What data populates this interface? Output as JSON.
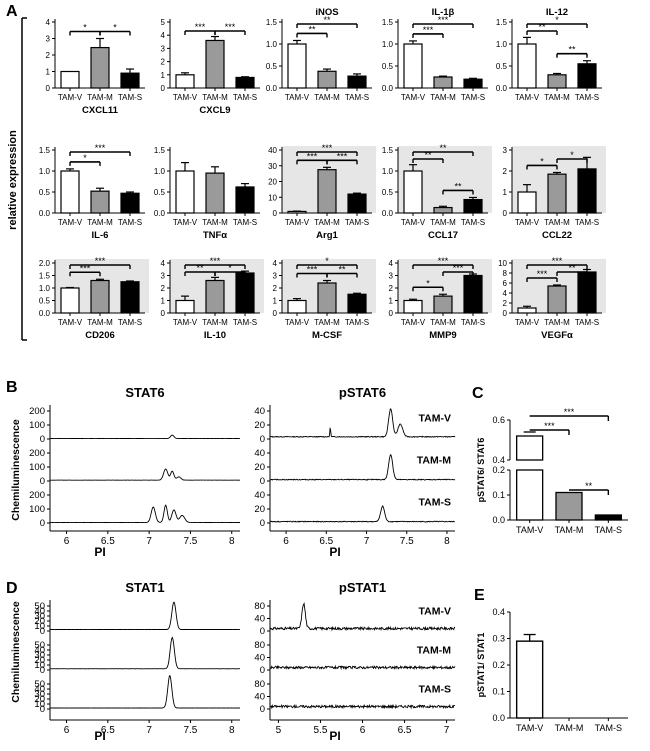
{
  "panels": {
    "A": "A",
    "B": "B",
    "C": "C",
    "D": "D",
    "E": "E"
  },
  "axis_labels": {
    "relative_expression": "relative expression",
    "chemiluminescence": "Chemiluminescence",
    "pi": "PI",
    "pstat6_ratio": "pSTAT6/ STAT6",
    "pstat1_ratio": "pSTAT1/ STAT1"
  },
  "groups": [
    "TAM-V",
    "TAM-M",
    "TAM-S"
  ],
  "chart_data": [
    {
      "type": "bar",
      "id": "CXCL11",
      "title": "CXCL11",
      "categories": [
        "TAM-V",
        "TAM-M",
        "TAM-S"
      ],
      "values": [
        1.0,
        2.45,
        0.9
      ],
      "errors": [
        0.0,
        0.55,
        0.25
      ],
      "ylim": [
        0,
        4
      ],
      "yticks": [
        0,
        1,
        2,
        3,
        4
      ],
      "title_pos": "bottom",
      "shaded": false,
      "sig": [
        {
          "a": 0,
          "b": 1,
          "label": "*"
        },
        {
          "a": 1,
          "b": 2,
          "label": "*"
        }
      ]
    },
    {
      "type": "bar",
      "id": "CXCL9",
      "title": "CXCL9",
      "categories": [
        "TAM-V",
        "TAM-M",
        "TAM-S"
      ],
      "values": [
        1.0,
        3.6,
        0.8
      ],
      "errors": [
        0.15,
        0.3,
        0.05
      ],
      "ylim": [
        0,
        5
      ],
      "yticks": [
        0,
        1,
        2,
        3,
        4,
        5
      ],
      "title_pos": "bottom",
      "shaded": false,
      "sig": [
        {
          "a": 0,
          "b": 1,
          "label": "***"
        },
        {
          "a": 1,
          "b": 2,
          "label": "***"
        }
      ]
    },
    {
      "type": "bar",
      "id": "iNOS",
      "title": "iNOS",
      "categories": [
        "TAM-V",
        "TAM-M",
        "TAM-S"
      ],
      "values": [
        1.0,
        0.38,
        0.27
      ],
      "errors": [
        0.08,
        0.05,
        0.05
      ],
      "ylim": [
        0,
        1.5
      ],
      "yticks": [
        0,
        0.5,
        1.0,
        1.5
      ],
      "title_pos": "top",
      "shaded": false,
      "sig": [
        {
          "a": 0,
          "b": 1,
          "label": "**"
        },
        {
          "a": 0,
          "b": 2,
          "label": "**"
        }
      ]
    },
    {
      "type": "bar",
      "id": "IL-1b",
      "title": "IL-1β",
      "categories": [
        "TAM-V",
        "TAM-M",
        "TAM-S"
      ],
      "values": [
        1.0,
        0.25,
        0.2
      ],
      "errors": [
        0.07,
        0.02,
        0.02
      ],
      "ylim": [
        0,
        1.5
      ],
      "yticks": [
        0,
        0.5,
        1.0,
        1.5
      ],
      "title_pos": "top",
      "shaded": false,
      "sig": [
        {
          "a": 0,
          "b": 1,
          "label": "***"
        },
        {
          "a": 0,
          "b": 2,
          "label": "***"
        }
      ]
    },
    {
      "type": "bar",
      "id": "IL-12",
      "title": "IL-12",
      "categories": [
        "TAM-V",
        "TAM-M",
        "TAM-S"
      ],
      "values": [
        1.0,
        0.3,
        0.55
      ],
      "errors": [
        0.15,
        0.03,
        0.07
      ],
      "ylim": [
        0,
        1.5
      ],
      "yticks": [
        0,
        0.5,
        1.0,
        1.5
      ],
      "title_pos": "top",
      "shaded": false,
      "sig": [
        {
          "a": 0,
          "b": 1,
          "label": "**"
        },
        {
          "a": 1,
          "b": 2,
          "label": "**"
        },
        {
          "a": 0,
          "b": 2,
          "label": "*"
        }
      ]
    },
    {
      "type": "bar",
      "id": "IL-6",
      "title": "IL-6",
      "categories": [
        "TAM-V",
        "TAM-M",
        "TAM-S"
      ],
      "values": [
        1.0,
        0.52,
        0.47
      ],
      "errors": [
        0.05,
        0.07,
        0.03
      ],
      "ylim": [
        0,
        1.5
      ],
      "yticks": [
        0,
        0.5,
        1.0,
        1.5
      ],
      "title_pos": "bottom",
      "shaded": false,
      "sig": [
        {
          "a": 0,
          "b": 1,
          "label": "*"
        },
        {
          "a": 0,
          "b": 2,
          "label": "***"
        }
      ]
    },
    {
      "type": "bar",
      "id": "TNFa",
      "title": "TNFα",
      "categories": [
        "TAM-V",
        "TAM-M",
        "TAM-S"
      ],
      "values": [
        1.0,
        0.95,
        0.62
      ],
      "errors": [
        0.2,
        0.15,
        0.08
      ],
      "ylim": [
        0,
        1.5
      ],
      "yticks": [
        0,
        0.5,
        1.0,
        1.5
      ],
      "title_pos": "bottom",
      "shaded": false,
      "sig": []
    },
    {
      "type": "bar",
      "id": "Arg1",
      "title": "Arg1",
      "categories": [
        "TAM-V",
        "TAM-M",
        "TAM-S"
      ],
      "values": [
        1.0,
        27.5,
        12.0
      ],
      "errors": [
        0.2,
        1.5,
        0.6
      ],
      "ylim": [
        0,
        40
      ],
      "yticks": [
        0,
        10,
        20,
        30,
        40
      ],
      "title_pos": "bottom",
      "shaded": true,
      "sig": [
        {
          "a": 0,
          "b": 1,
          "label": "***"
        },
        {
          "a": 1,
          "b": 2,
          "label": "***"
        },
        {
          "a": 0,
          "b": 2,
          "label": "***"
        }
      ]
    },
    {
      "type": "bar",
      "id": "CCL17",
      "title": "CCL17",
      "categories": [
        "TAM-V",
        "TAM-M",
        "TAM-S"
      ],
      "values": [
        1.0,
        0.13,
        0.32
      ],
      "errors": [
        0.15,
        0.03,
        0.05
      ],
      "ylim": [
        0,
        1.5
      ],
      "yticks": [
        0,
        0.5,
        1.0,
        1.5
      ],
      "title_pos": "bottom",
      "shaded": true,
      "sig": [
        {
          "a": 0,
          "b": 1,
          "label": "**"
        },
        {
          "a": 0,
          "b": 2,
          "label": "**"
        },
        {
          "a": 1,
          "b": 2,
          "label": "**"
        }
      ]
    },
    {
      "type": "bar",
      "id": "CCL22",
      "title": "CCL22",
      "categories": [
        "TAM-V",
        "TAM-M",
        "TAM-S"
      ],
      "values": [
        1.0,
        1.85,
        2.1
      ],
      "errors": [
        0.35,
        0.08,
        0.55
      ],
      "ylim": [
        0,
        3
      ],
      "yticks": [
        0,
        1,
        2,
        3
      ],
      "title_pos": "bottom",
      "shaded": true,
      "sig": [
        {
          "a": 0,
          "b": 1,
          "label": "*"
        },
        {
          "a": 1,
          "b": 2,
          "label": "*"
        }
      ]
    },
    {
      "type": "bar",
      "id": "CD206",
      "title": "CD206",
      "categories": [
        "TAM-V",
        "TAM-M",
        "TAM-S"
      ],
      "values": [
        1.0,
        1.3,
        1.25
      ],
      "errors": [
        0.02,
        0.05,
        0.03
      ],
      "ylim": [
        0,
        2.0
      ],
      "yticks": [
        0,
        0.5,
        1.0,
        1.5,
        2.0
      ],
      "title_pos": "bottom",
      "shaded": true,
      "sig": [
        {
          "a": 0,
          "b": 1,
          "label": "***"
        },
        {
          "a": 0,
          "b": 2,
          "label": "***"
        }
      ]
    },
    {
      "type": "bar",
      "id": "IL-10",
      "title": "IL-10",
      "categories": [
        "TAM-V",
        "TAM-M",
        "TAM-S"
      ],
      "values": [
        1.0,
        2.6,
        3.2
      ],
      "errors": [
        0.35,
        0.25,
        0.15
      ],
      "ylim": [
        0,
        4
      ],
      "yticks": [
        0,
        1,
        2,
        3,
        4
      ],
      "title_pos": "bottom",
      "shaded": true,
      "sig": [
        {
          "a": 0,
          "b": 1,
          "label": "**"
        },
        {
          "a": 1,
          "b": 2,
          "label": "*"
        },
        {
          "a": 0,
          "b": 2,
          "label": "***"
        }
      ]
    },
    {
      "type": "bar",
      "id": "M-CSF",
      "title": "M-CSF",
      "categories": [
        "TAM-V",
        "TAM-M",
        "TAM-S"
      ],
      "values": [
        1.0,
        2.4,
        1.5
      ],
      "errors": [
        0.15,
        0.2,
        0.08
      ],
      "ylim": [
        0,
        4
      ],
      "yticks": [
        0,
        1,
        2,
        3,
        4
      ],
      "title_pos": "bottom",
      "shaded": true,
      "sig": [
        {
          "a": 0,
          "b": 1,
          "label": "***"
        },
        {
          "a": 1,
          "b": 2,
          "label": "**"
        },
        {
          "a": 0,
          "b": 2,
          "label": "*"
        }
      ]
    },
    {
      "type": "bar",
      "id": "MMP9",
      "title": "MMP9",
      "categories": [
        "TAM-V",
        "TAM-M",
        "TAM-S"
      ],
      "values": [
        1.0,
        1.35,
        3.0
      ],
      "errors": [
        0.1,
        0.15,
        0.12
      ],
      "ylim": [
        0,
        4
      ],
      "yticks": [
        0,
        1,
        2,
        3,
        4
      ],
      "title_pos": "bottom",
      "shaded": true,
      "sig": [
        {
          "a": 0,
          "b": 1,
          "label": "*"
        },
        {
          "a": 1,
          "b": 2,
          "label": "***"
        },
        {
          "a": 0,
          "b": 2,
          "label": "***"
        }
      ]
    },
    {
      "type": "bar",
      "id": "VEGFa",
      "title": "VEGFα",
      "categories": [
        "TAM-V",
        "TAM-M",
        "TAM-S"
      ],
      "values": [
        1.0,
        5.4,
        8.2
      ],
      "errors": [
        0.35,
        0.2,
        0.5
      ],
      "ylim": [
        0,
        10
      ],
      "yticks": [
        0,
        2,
        4,
        6,
        8,
        10
      ],
      "title_pos": "bottom",
      "shaded": true,
      "sig": [
        {
          "a": 0,
          "b": 1,
          "label": "***"
        },
        {
          "a": 1,
          "b": 2,
          "label": "**"
        },
        {
          "a": 0,
          "b": 2,
          "label": "***"
        }
      ]
    },
    {
      "type": "line",
      "id": "STAT6",
      "title": "STAT6",
      "xlabel": "PI",
      "xlim": [
        5.8,
        8.1
      ],
      "xticks": [
        "6",
        "6.5",
        "7",
        "7.5",
        "8"
      ],
      "ylim": [
        0,
        200
      ],
      "yticks": [
        "0",
        "100",
        "200"
      ],
      "series": [
        {
          "name": "TAM-V",
          "peaks": [
            [
              7.28,
              0.12,
              0.02
            ]
          ],
          "noise": 0.004,
          "baseline": 0.02
        },
        {
          "name": "TAM-M",
          "peaks": [
            [
              7.2,
              0.4,
              0.025
            ],
            [
              7.28,
              0.32,
              0.02
            ],
            [
              7.36,
              0.12,
              0.025
            ]
          ],
          "noise": 0.004,
          "baseline": 0.03
        },
        {
          "name": "TAM-S",
          "peaks": [
            [
              7.05,
              0.55,
              0.025
            ],
            [
              7.2,
              0.62,
              0.02
            ],
            [
              7.3,
              0.45,
              0.025
            ],
            [
              7.4,
              0.25,
              0.03
            ]
          ],
          "noise": 0.004,
          "baseline": 0.02
        }
      ]
    },
    {
      "type": "line",
      "id": "pSTAT6",
      "title": "pSTAT6",
      "xlabel": "PI",
      "xlim": [
        5.8,
        8.1
      ],
      "xticks": [
        "6",
        "6.5",
        "7",
        "7.5",
        "8"
      ],
      "ylim": [
        0,
        50
      ],
      "yticks": [
        "0",
        "20",
        "40"
      ],
      "series": [
        {
          "name": "TAM-V",
          "peaks": [
            [
              7.3,
              1.0,
              0.025
            ],
            [
              7.42,
              0.45,
              0.03
            ],
            [
              6.55,
              0.35,
              0.005
            ]
          ],
          "noise": 0.03,
          "baseline": 0.08
        },
        {
          "name": "TAM-M",
          "peaks": [
            [
              7.3,
              0.9,
              0.025
            ]
          ],
          "noise": 0.03,
          "baseline": 0.05
        },
        {
          "name": "TAM-S",
          "peaks": [
            [
              7.2,
              0.55,
              0.025
            ]
          ],
          "noise": 0.03,
          "baseline": 0.05
        }
      ]
    },
    {
      "type": "bar",
      "id": "pSTAT6-ratio",
      "ylabel": "pSTAT6/ STAT6",
      "categories": [
        "TAM-V",
        "TAM-M",
        "TAM-S"
      ],
      "values": [
        0.52,
        0.11,
        0.02
      ],
      "errors": [
        0.02,
        0.002,
        0.003
      ],
      "broken_axis": true,
      "lower_range": [
        0,
        0.2
      ],
      "lower_ticks": [
        "0.0",
        "0.1",
        "0.2"
      ],
      "upper_range": [
        0.4,
        0.6
      ],
      "upper_ticks": [
        "0.4",
        "0.6"
      ],
      "sig": [
        {
          "a": 0,
          "b": 1,
          "label": "***"
        },
        {
          "a": 0,
          "b": 2,
          "label": "***"
        },
        {
          "a": 1,
          "b": 2,
          "label": "**"
        }
      ]
    },
    {
      "type": "line",
      "id": "STAT1",
      "title": "STAT1",
      "xlabel": "PI",
      "xlim": [
        5.8,
        8.1
      ],
      "xticks": [
        "6",
        "6.5",
        "7",
        "7.5",
        "8"
      ],
      "ylim": [
        0,
        50
      ],
      "yticks": [
        "0",
        "10",
        "20",
        "30",
        "40",
        "50"
      ],
      "series": [
        {
          "name": "TAM-V",
          "peaks": [
            [
              7.3,
              1.1,
              0.025
            ]
          ],
          "noise": 0.006,
          "baseline": 0.06
        },
        {
          "name": "TAM-M",
          "peaks": [
            [
              7.28,
              1.25,
              0.025
            ]
          ],
          "noise": 0.006,
          "baseline": 0.05
        },
        {
          "name": "TAM-S",
          "peaks": [
            [
              7.25,
              1.3,
              0.025
            ]
          ],
          "noise": 0.006,
          "baseline": 0.04
        }
      ]
    },
    {
      "type": "line",
      "id": "pSTAT1",
      "title": "pSTAT1",
      "xlabel": "PI",
      "xlim": [
        4.9,
        7.1
      ],
      "xticks": [
        "5",
        "5.5",
        "6",
        "6.5",
        "7"
      ],
      "ylim": [
        0,
        80
      ],
      "yticks": [
        "0",
        "40",
        "80"
      ],
      "series": [
        {
          "name": "TAM-V",
          "peaks": [
            [
              5.3,
              1.0,
              0.02
            ]
          ],
          "noise": 0.1,
          "baseline": 0.1
        },
        {
          "name": "TAM-M",
          "peaks": [],
          "noise": 0.1,
          "baseline": 0.1
        },
        {
          "name": "TAM-S",
          "peaks": [],
          "noise": 0.1,
          "baseline": 0.1
        }
      ]
    },
    {
      "type": "bar",
      "id": "pSTAT1-ratio",
      "ylabel": "pSTAT1/ STAT1",
      "categories": [
        "TAM-V",
        "TAM-M",
        "TAM-S"
      ],
      "values": [
        0.29,
        0.0,
        0.0
      ],
      "errors": [
        0.025,
        0,
        0
      ],
      "ylim": [
        0,
        0.4
      ],
      "yticks": [
        "0.0",
        "0.1",
        "0.2",
        "0.3",
        "0.4"
      ],
      "sig": []
    }
  ]
}
